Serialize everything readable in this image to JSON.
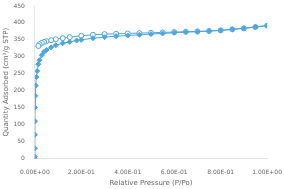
{
  "chart_data": {
    "type": "line",
    "xlabel": "Relative Pressure (P/Po)",
    "ylabel": "Quantity Adsorbed (cm³/g STP)",
    "xlim": [
      0.0,
      1.0
    ],
    "ylim": [
      0,
      450
    ],
    "xticks": [
      {
        "value": 0.0,
        "label": "0.00E+00"
      },
      {
        "value": 0.2,
        "label": "2.00E-01"
      },
      {
        "value": 0.4,
        "label": "4.00E-01"
      },
      {
        "value": 0.6,
        "label": "6.00E-01"
      },
      {
        "value": 0.8,
        "label": "8.00E-01"
      },
      {
        "value": 1.0,
        "label": "1.00E+00"
      }
    ],
    "yticks": [
      0,
      50,
      100,
      150,
      200,
      250,
      300,
      350,
      400,
      450
    ],
    "grid": false,
    "series": [
      {
        "color": "#4DA6E0",
        "marker": "diamond",
        "x": [
          1e-06,
          2e-05,
          0.0001,
          0.0003,
          0.0006,
          0.001,
          0.002,
          0.004,
          0.007,
          0.01,
          0.015,
          0.02,
          0.03,
          0.04,
          0.05,
          0.07,
          0.09,
          0.12,
          0.15,
          0.18,
          0.2,
          0.25,
          0.3,
          0.35,
          0.4,
          0.45,
          0.5,
          0.55,
          0.6,
          0.65,
          0.7,
          0.75,
          0.8,
          0.85,
          0.9,
          0.95,
          1.0
        ],
        "values": [
          0,
          5,
          30,
          70,
          110,
          150,
          185,
          215,
          240,
          258,
          278,
          290,
          305,
          315,
          320,
          328,
          334,
          340,
          344,
          348,
          350,
          355,
          358,
          361,
          363,
          365,
          367,
          369,
          371,
          373,
          374,
          376,
          378,
          381,
          384,
          388,
          392
        ]
      },
      {
        "color": "#4DA6E0",
        "marker": "circle",
        "x": [
          1.0,
          0.95,
          0.9,
          0.85,
          0.8,
          0.75,
          0.7,
          0.65,
          0.6,
          0.55,
          0.5,
          0.45,
          0.4,
          0.35,
          0.3,
          0.25,
          0.2,
          0.15,
          0.12,
          0.09,
          0.07,
          0.05,
          0.04,
          0.03,
          0.02,
          0.015
        ],
        "values": [
          392,
          388,
          384,
          381,
          378,
          376,
          375,
          374,
          373,
          372,
          371,
          370,
          369,
          368,
          367,
          365,
          362,
          358,
          355,
          352,
          349,
          346,
          344,
          341,
          337,
          332
        ]
      }
    ]
  }
}
